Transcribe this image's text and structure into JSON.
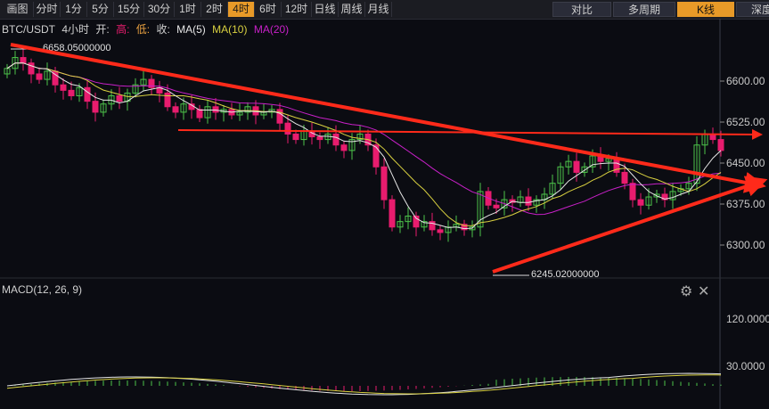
{
  "toolbar": {
    "left_items": [
      "画图",
      "分时",
      "1分",
      "5分",
      "15分",
      "30分",
      "1时",
      "2时",
      "4时",
      "6时",
      "12时",
      "日线",
      "周线",
      "月线"
    ],
    "active": "4时",
    "right_items": [
      "对比",
      "多周期",
      "K线",
      "深度图"
    ],
    "right_active": "K线"
  },
  "legend": {
    "symbol": "BTC/USDT",
    "period": "4小时",
    "open_label": "开:",
    "high_label": "高:",
    "low_label": "低:",
    "close_label": "收:",
    "ma5": "MA(5)",
    "ma10": "MA(10)",
    "ma20": "MA(20)"
  },
  "colors": {
    "up": "#4cc34a",
    "down": "#e81c6e",
    "ma5": "#e6e6e6",
    "ma10": "#d8d040",
    "ma20": "#c820c8",
    "trendline": "#ff2a1a",
    "high_label": "#e81c6e",
    "low_label": "#4cc34a"
  },
  "price_axis": {
    "ticks": [
      "6600.00",
      "6525.00",
      "6450.00",
      "6375.00",
      "6300.00"
    ]
  },
  "macd_axis": {
    "ticks": [
      "120.0000",
      "30.0000"
    ]
  },
  "annotations": {
    "high": "6658.05000000",
    "low": "6245.02000000"
  },
  "macd": {
    "label": "MACD(12, 26, 9)"
  },
  "controls": {
    "settings_icon": "gear-icon",
    "close_icon": "close-icon"
  },
  "chart_data": {
    "type": "candlestick",
    "price_range": [
      6240,
      6680
    ],
    "closes": [
      6620,
      6640,
      6630,
      6610,
      6600,
      6615,
      6590,
      6580,
      6570,
      6585,
      6560,
      6540,
      6555,
      6570,
      6560,
      6575,
      6590,
      6600,
      6585,
      6575,
      6550,
      6540,
      6555,
      6545,
      6530,
      6550,
      6540,
      6545,
      6535,
      6540,
      6550,
      6535,
      6540,
      6545,
      6520,
      6500,
      6490,
      6505,
      6495,
      6490,
      6500,
      6480,
      6470,
      6490,
      6500,
      6480,
      6440,
      6380,
      6330,
      6340,
      6350,
      6330,
      6340,
      6325,
      6320,
      6330,
      6335,
      6325,
      6330,
      6395,
      6370,
      6365,
      6380,
      6375,
      6385,
      6370,
      6380,
      6390,
      6410,
      6440,
      6450,
      6430,
      6440,
      6460,
      6450,
      6455,
      6430,
      6410,
      6380,
      6370,
      6385,
      6390,
      6380,
      6395,
      6400,
      6410,
      6480,
      6500,
      6490,
      6470
    ]
  }
}
